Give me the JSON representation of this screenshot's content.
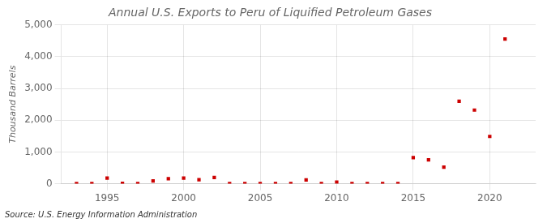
{
  "chart_data": {
    "type": "scatter",
    "title": "Annual U.S. Exports to Peru of Liquified Petroleum Gases",
    "ylabel": "Thousand Barrels",
    "annotations": [
      "Source: U.S. Energy Information Administration"
    ],
    "x": [
      1993,
      1994,
      1995,
      1996,
      1997,
      1998,
      1999,
      2000,
      2001,
      2002,
      2003,
      2004,
      2005,
      2006,
      2007,
      2008,
      2009,
      2010,
      2011,
      2012,
      2013,
      2014,
      2015,
      2016,
      2017,
      2018,
      2019,
      2020,
      2021
    ],
    "values": [
      5,
      5,
      180,
      10,
      5,
      90,
      160,
      180,
      130,
      200,
      5,
      5,
      5,
      5,
      5,
      120,
      5,
      50,
      5,
      5,
      5,
      5,
      820,
      750,
      520,
      2600,
      2320,
      1490,
      4560
    ],
    "color": "#cc0000",
    "marker": "square",
    "xlim": [
      1992,
      2023
    ],
    "xticks": [
      1995,
      2000,
      2005,
      2010,
      2015,
      2020
    ],
    "ylim": [
      0,
      5000
    ],
    "yticks": [
      0,
      {
        "value": 1000,
        "label": "1,000"
      },
      {
        "value": 2000,
        "label": "2,000"
      },
      {
        "value": 3000,
        "label": "3,000"
      },
      {
        "value": 4000,
        "label": "4,000"
      },
      {
        "value": 5000,
        "label": "5,000"
      }
    ],
    "grid": true
  }
}
